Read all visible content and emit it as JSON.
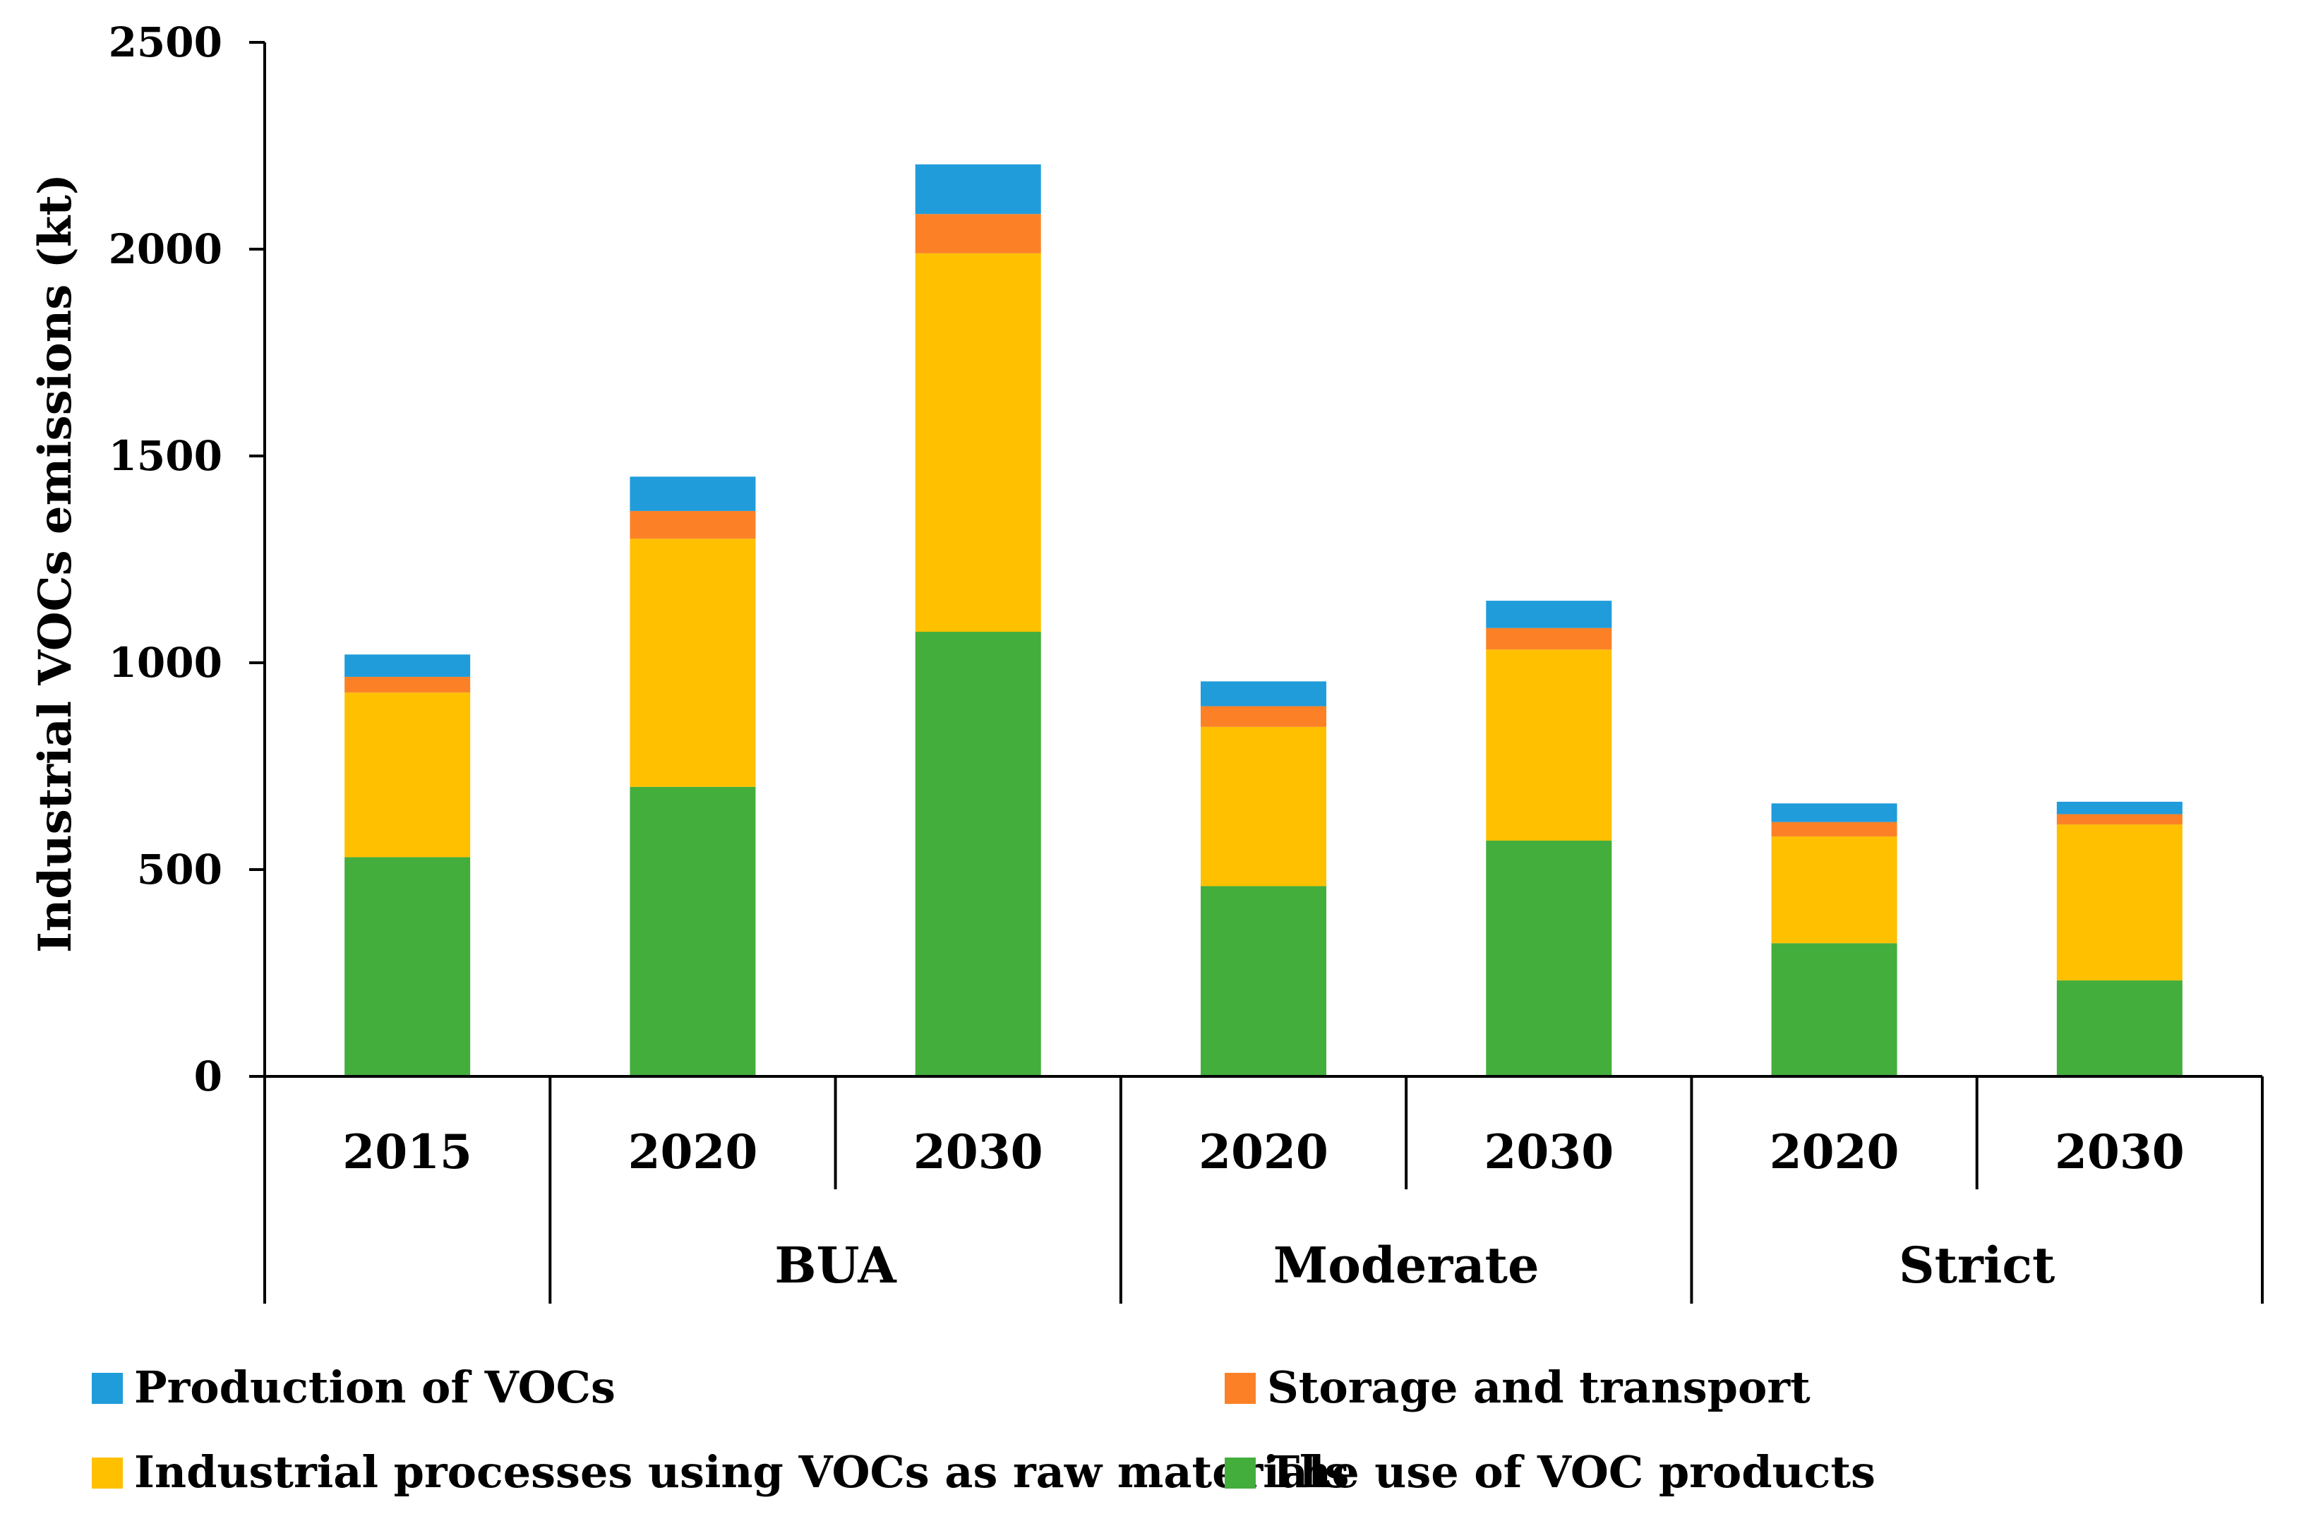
{
  "chart_data": {
    "type": "bar",
    "stacked": true,
    "ylabel": "Industrial VOCs emissions (kt)",
    "ylim": [
      0,
      2500
    ],
    "yticks": [
      0,
      500,
      1000,
      1500,
      2000,
      2500
    ],
    "yticks_labels": [
      "0",
      "500",
      "1000",
      "1500",
      "2000",
      "2500"
    ],
    "categories": [
      "2015",
      "2020",
      "2030",
      "2020",
      "2030",
      "2020",
      "2030"
    ],
    "groups": [
      {
        "label": "",
        "span": [
          0,
          0
        ]
      },
      {
        "label": "BUA",
        "span": [
          1,
          2
        ]
      },
      {
        "label": "Moderate",
        "span": [
          3,
          4
        ]
      },
      {
        "label": "Strict",
        "span": [
          5,
          6
        ]
      }
    ],
    "series": [
      {
        "name": "The use of VOC products",
        "color": "#43AE3C",
        "values": [
          530,
          700,
          1075,
          460,
          570,
          322,
          232
        ]
      },
      {
        "name": "Industrial processes using VOCs as raw materials",
        "color": "#FFC000",
        "values": [
          398,
          600,
          915,
          385,
          462,
          258,
          377
        ]
      },
      {
        "name": "Storage and transport",
        "color": "#FC8126",
        "values": [
          38,
          67,
          95,
          50,
          52,
          35,
          25
        ]
      },
      {
        "name": "Production of VOCs",
        "color": "#209CDB",
        "values": [
          54,
          83,
          120,
          60,
          66,
          45,
          30
        ]
      }
    ],
    "legend": {
      "position": "bottom",
      "order": [
        3,
        2,
        1,
        0
      ]
    }
  }
}
